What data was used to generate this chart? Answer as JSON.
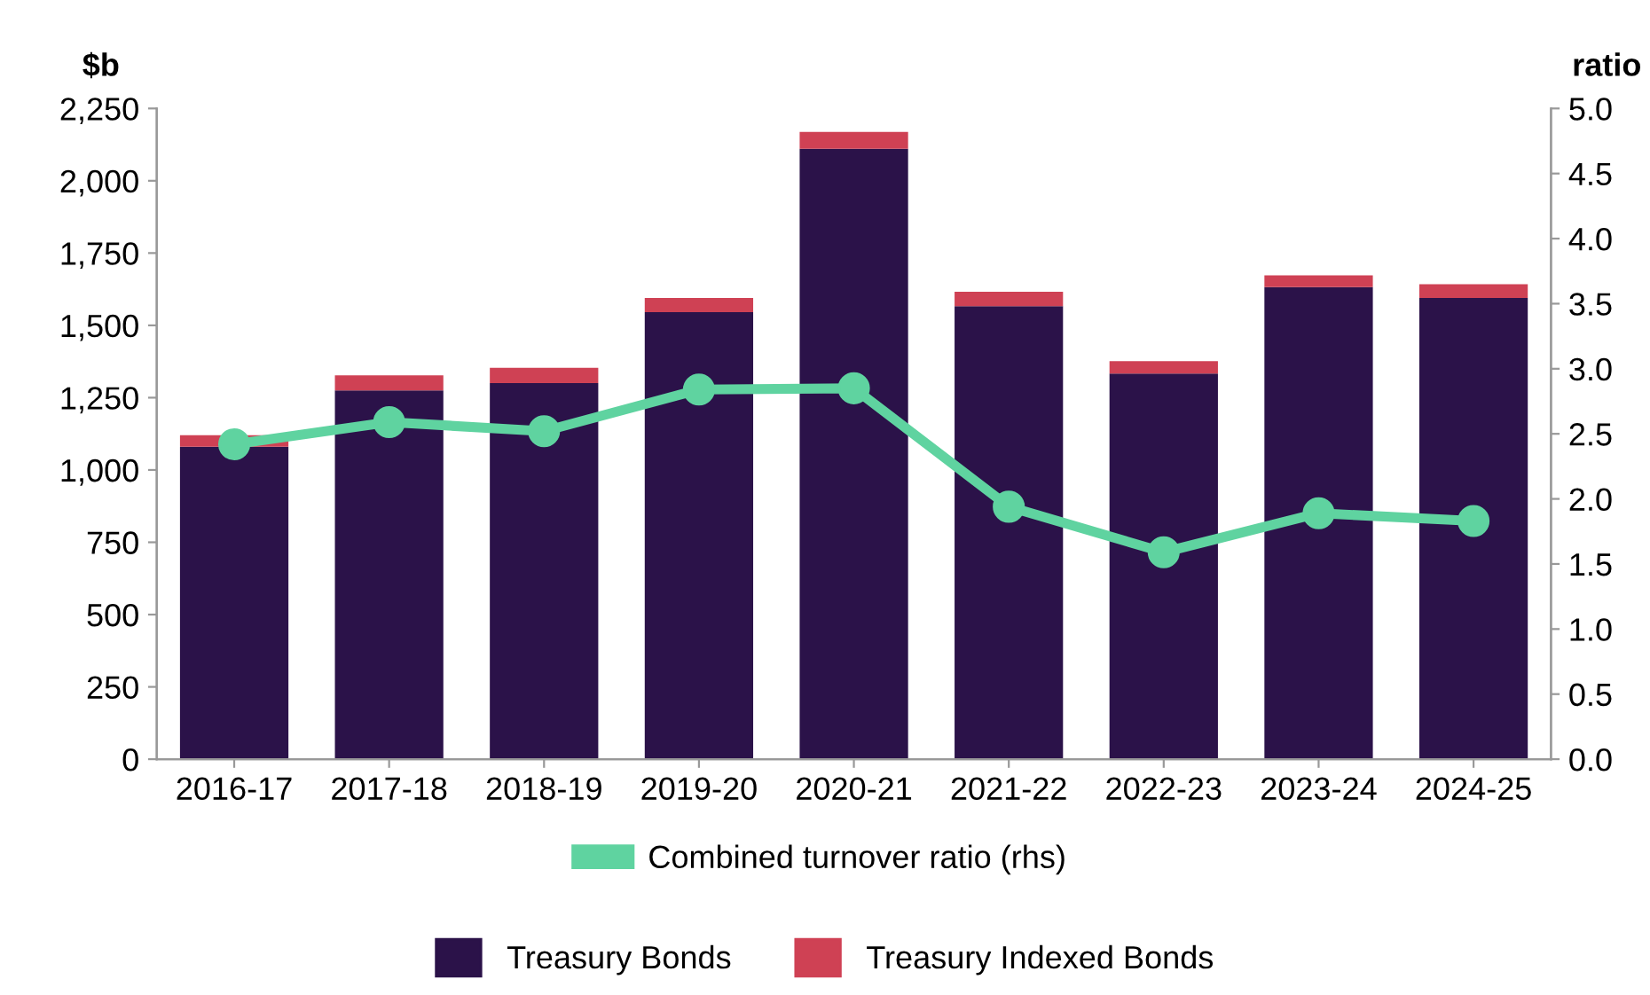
{
  "chart_data": {
    "type": "bar",
    "stacked": true,
    "ylabel": "$b",
    "y2label": "ratio",
    "categories": [
      "2016-17",
      "2017-18",
      "2018-19",
      "2019-20",
      "2020-21",
      "2021-22",
      "2022-23",
      "2023-24",
      "2024-25"
    ],
    "series": [
      {
        "name": "Treasury Bonds",
        "color": "#2b1249",
        "values": [
          1080,
          1275,
          1300,
          1546,
          2111,
          1566,
          1333,
          1632,
          1595
        ]
      },
      {
        "name": "Treasury Indexed Bonds",
        "color": "#cf4154",
        "values": [
          40,
          52,
          53,
          49,
          58,
          50,
          43,
          41,
          47
        ]
      },
      {
        "name": "Combined turnover ratio (rhs)",
        "type": "line",
        "axis": "y2",
        "color": "#5fd3a0",
        "marker": "circle",
        "values": [
          2.42,
          2.59,
          2.52,
          2.84,
          2.85,
          1.94,
          1.59,
          1.89,
          1.83
        ]
      }
    ],
    "ylim": [
      0,
      2250
    ],
    "yticks": [
      0,
      {
        "value": 250,
        "label": "250"
      },
      {
        "value": 500,
        "label": "500"
      },
      {
        "value": 750,
        "label": "750"
      },
      {
        "value": 1000,
        "label": "1,000"
      },
      {
        "value": 1250,
        "label": "1,250"
      },
      {
        "value": 1500,
        "label": "1,500"
      },
      {
        "value": 1750,
        "label": "1,750"
      },
      {
        "value": 2000,
        "label": "2,000"
      },
      {
        "value": 2250,
        "label": "2,250"
      }
    ],
    "y2lim": [
      0,
      5
    ],
    "y2ticks": [
      {
        "value": 0,
        "label": "0.0"
      },
      {
        "value": 0.5,
        "label": "0.5"
      },
      {
        "value": 1,
        "label": "1.0"
      },
      {
        "value": 1.5,
        "label": "1.5"
      },
      {
        "value": 2,
        "label": "2.0"
      },
      {
        "value": 2.5,
        "label": "2.5"
      },
      {
        "value": 3,
        "label": "3.0"
      },
      {
        "value": 3.5,
        "label": "3.5"
      },
      {
        "value": 4,
        "label": "4.0"
      },
      {
        "value": 4.5,
        "label": "4.5"
      },
      {
        "value": 5,
        "label": "5.0"
      }
    ],
    "grid": false,
    "legend": "bottom"
  }
}
